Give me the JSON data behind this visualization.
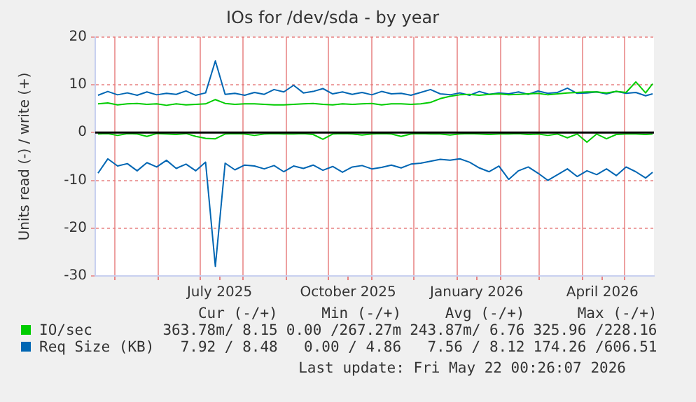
{
  "chart_data": {
    "type": "line",
    "title": "IOs for /dev/sda - by year",
    "ylabel": "Units read (-) / write (+)",
    "x": [
      "2025-04-19",
      "2025-04-26",
      "2025-05-03",
      "2025-05-10",
      "2025-05-17",
      "2025-05-24",
      "2025-05-31",
      "2025-06-07",
      "2025-06-14",
      "2025-06-21",
      "2025-06-28",
      "2025-07-05",
      "2025-07-12",
      "2025-07-19",
      "2025-07-26",
      "2025-08-02",
      "2025-08-09",
      "2025-08-16",
      "2025-08-23",
      "2025-08-30",
      "2025-09-06",
      "2025-09-13",
      "2025-09-20",
      "2025-09-27",
      "2025-10-04",
      "2025-10-11",
      "2025-10-18",
      "2025-10-25",
      "2025-11-01",
      "2025-11-08",
      "2025-11-15",
      "2025-11-22",
      "2025-11-29",
      "2025-12-06",
      "2025-12-13",
      "2025-12-20",
      "2025-12-27",
      "2026-01-03",
      "2026-01-10",
      "2026-01-17",
      "2026-01-24",
      "2026-01-31",
      "2026-02-07",
      "2026-02-14",
      "2026-02-21",
      "2026-02-28",
      "2026-03-07",
      "2026-03-14",
      "2026-03-21",
      "2026-03-28",
      "2026-04-04",
      "2026-04-11",
      "2026-04-18",
      "2026-04-25",
      "2026-05-02",
      "2026-05-09",
      "2026-05-16",
      "2026-05-21"
    ],
    "series": [
      {
        "name": "IO/sec",
        "color": "#00cc00",
        "values": [
          6.0,
          6.2,
          5.8,
          6.0,
          6.1,
          5.9,
          6.0,
          5.7,
          6.0,
          5.8,
          5.9,
          6.0,
          6.9,
          6.1,
          5.9,
          6.0,
          6.0,
          5.9,
          5.8,
          5.8,
          5.9,
          6.0,
          6.1,
          5.9,
          5.8,
          6.0,
          5.9,
          6.0,
          6.1,
          5.8,
          6.0,
          6.0,
          5.9,
          6.0,
          6.3,
          7.1,
          7.6,
          7.9,
          8.0,
          7.8,
          8.0,
          8.1,
          7.9,
          8.0,
          8.1,
          8.2,
          7.9,
          8.1,
          8.3,
          8.4,
          8.5,
          8.5,
          8.3,
          8.6,
          8.4,
          10.6,
          8.3,
          10.2
        ]
      },
      {
        "color": "#00cc00",
        "values": [
          -0.3,
          -0.2,
          -0.6,
          -0.2,
          -0.3,
          -0.8,
          -0.2,
          -0.3,
          -0.4,
          -0.2,
          -0.8,
          -1.2,
          -1.3,
          -0.3,
          -0.2,
          -0.3,
          -0.6,
          -0.3,
          -0.2,
          -0.3,
          -0.3,
          -0.2,
          -0.4,
          -1.4,
          -0.3,
          -0.2,
          -0.3,
          -0.5,
          -0.3,
          -0.2,
          -0.3,
          -0.8,
          -0.3,
          -0.2,
          -0.3,
          -0.3,
          -0.5,
          -0.3,
          -0.2,
          -0.3,
          -0.4,
          -0.3,
          -0.3,
          -0.2,
          -0.4,
          -0.3,
          -0.6,
          -0.3,
          -1.1,
          -0.3,
          -2.0,
          -0.3,
          -1.3,
          -0.4,
          -0.3,
          -0.3,
          -0.4,
          -0.3
        ]
      },
      {
        "name": "Req Size (KB)",
        "color": "#0066b3",
        "values": [
          7.8,
          8.6,
          7.9,
          8.3,
          7.8,
          8.5,
          7.9,
          8.2,
          8.0,
          8.7,
          7.8,
          8.3,
          15.0,
          8.0,
          8.2,
          7.8,
          8.4,
          8.0,
          9.0,
          8.5,
          9.9,
          8.3,
          8.6,
          9.2,
          8.1,
          8.5,
          8.0,
          8.4,
          7.9,
          8.6,
          8.1,
          8.2,
          7.8,
          8.4,
          9.0,
          8.1,
          7.9,
          8.3,
          7.8,
          8.6,
          8.0,
          8.3,
          8.1,
          8.5,
          8.0,
          8.7,
          8.2,
          8.4,
          9.3,
          8.2,
          8.3,
          8.5,
          8.1,
          8.6,
          8.2,
          8.4,
          7.7,
          8.1
        ]
      },
      {
        "color": "#0066b3",
        "values": [
          -8.5,
          -5.5,
          -7.0,
          -6.5,
          -8.0,
          -6.3,
          -7.2,
          -5.8,
          -7.5,
          -6.6,
          -8.0,
          -6.2,
          -28.0,
          -6.4,
          -7.8,
          -6.8,
          -7.0,
          -7.6,
          -6.9,
          -8.2,
          -7.0,
          -7.5,
          -6.8,
          -7.9,
          -7.1,
          -8.3,
          -7.2,
          -6.9,
          -7.6,
          -7.3,
          -6.8,
          -7.4,
          -6.6,
          -6.4,
          -6.0,
          -5.6,
          -5.8,
          -5.5,
          -6.2,
          -7.4,
          -8.2,
          -7.0,
          -9.8,
          -8.0,
          -7.2,
          -8.5,
          -10.0,
          -8.8,
          -7.6,
          -9.2,
          -8.0,
          -8.8,
          -7.6,
          -9.0,
          -7.2,
          -8.2,
          -9.5,
          -8.3
        ]
      }
    ],
    "xlim": [
      "2025-04-17",
      "2026-05-22"
    ],
    "xticks": [
      {
        "value": "2025-05-01",
        "label": null
      },
      {
        "value": "2025-06-01",
        "label": null
      },
      {
        "value": "2025-07-01",
        "label": null
      },
      {
        "value": "2025-07-15",
        "label": "July 2025"
      },
      {
        "value": "2025-08-01",
        "label": null
      },
      {
        "value": "2025-09-01",
        "label": null
      },
      {
        "value": "2025-10-01",
        "label": null
      },
      {
        "value": "2025-10-15",
        "label": "October 2025"
      },
      {
        "value": "2025-11-01",
        "label": null
      },
      {
        "value": "2025-12-01",
        "label": null
      },
      {
        "value": "2026-01-01",
        "label": null
      },
      {
        "value": "2026-01-15",
        "label": "January 2026"
      },
      {
        "value": "2026-02-01",
        "label": null
      },
      {
        "value": "2026-03-01",
        "label": null
      },
      {
        "value": "2026-04-01",
        "label": null
      },
      {
        "value": "2026-04-15",
        "label": "April 2026"
      },
      {
        "value": "2026-05-01",
        "label": null
      }
    ],
    "ylim": [
      -30,
      20
    ],
    "yticks": [
      -30,
      -20,
      -10,
      0,
      10,
      20
    ],
    "ref_lines": [
      {
        "axis": "y",
        "value": 0,
        "color": "#000000"
      }
    ],
    "grid": true,
    "legend": "bottom",
    "marker": "none",
    "line_style": "solid",
    "annotations": [
      "Cur (-/+)",
      "Min (-/+)",
      "Avg (-/+)",
      "Max (-/+)",
      "363.78m/ 8.15",
      "0.00 /267.27m",
      "243.87m/ 6.76",
      "325.96 /228.16",
      "7.92 / 8.48",
      "0.00 / 4.86",
      "7.56 / 8.12",
      "174.26 /606.51",
      "Last update: Fri May 22 00:26:07 2026"
    ]
  }
}
